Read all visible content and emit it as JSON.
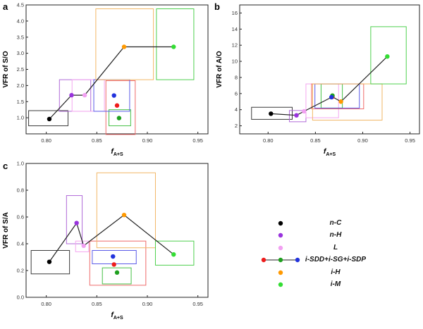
{
  "chart_data": [
    {
      "type": "scatter",
      "panel_label": "a",
      "xlabel": "f",
      "xlabel_sub": "A+S",
      "ylabel": "VFR of S/O",
      "xlim": [
        0.78,
        0.96
      ],
      "ylim": [
        0.5,
        4.5
      ],
      "xticks": [
        "0.80",
        "0.85",
        "0.90",
        "0.95"
      ],
      "xtick_values": [
        0.8,
        0.85,
        0.9,
        0.95
      ],
      "yticks": [
        "1.0",
        "1.5",
        "2.0",
        "2.5",
        "3.0",
        "3.5",
        "4.0",
        "4.5"
      ],
      "ytick_values": [
        1.0,
        1.5,
        2.0,
        2.5,
        3.0,
        3.5,
        4.0,
        4.5
      ],
      "boxes": [
        {
          "group": "n-C",
          "color": "#3a3a3a",
          "x": [
            0.7825,
            0.8215
          ],
          "y": [
            0.75,
            1.22
          ]
        },
        {
          "group": "n-H",
          "color": "#b06ad8",
          "x": [
            0.813,
            0.844
          ],
          "y": [
            1.2,
            2.18
          ]
        },
        {
          "group": "L",
          "color": "#f4a6f0",
          "x": [
            0.8255,
            0.8575
          ],
          "y": [
            1.2,
            2.18
          ]
        },
        {
          "group": "i-SDD",
          "color": "#ef6a6a",
          "x": [
            0.859,
            0.888
          ],
          "y": [
            0.48,
            2.15
          ]
        },
        {
          "group": "i-SG",
          "color": "#46c046",
          "x": [
            0.862,
            0.8835
          ],
          "y": [
            0.75,
            1.25
          ]
        },
        {
          "group": "i-SDP",
          "color": "#5a5ae8",
          "x": [
            0.847,
            0.8825
          ],
          "y": [
            1.2,
            2.18
          ]
        },
        {
          "group": "i-H",
          "color": "#f2b766",
          "x": [
            0.849,
            0.906
          ],
          "y": [
            2.18,
            4.38
          ]
        },
        {
          "group": "i-M",
          "color": "#4ed04e",
          "x": [
            0.909,
            0.946
          ],
          "y": [
            2.18,
            4.38
          ]
        }
      ],
      "points": [
        {
          "group": "n-C",
          "color": "#000000",
          "x": 0.803,
          "y": 0.96
        },
        {
          "group": "n-H",
          "color": "#9933dd",
          "x": 0.825,
          "y": 1.7
        },
        {
          "group": "L",
          "color": "#f2a0f2",
          "x": 0.838,
          "y": 1.7
        },
        {
          "group": "i-SDD",
          "color": "#ee1c1c",
          "x": 0.87,
          "y": 1.38
        },
        {
          "group": "i-SG",
          "color": "#1fa01f",
          "x": 0.872,
          "y": 0.99
        },
        {
          "group": "i-SDP",
          "color": "#2233dd",
          "x": 0.867,
          "y": 1.69
        },
        {
          "group": "i-H",
          "color": "#ff9900",
          "x": 0.877,
          "y": 3.2
        },
        {
          "group": "i-M",
          "color": "#33dd33",
          "x": 0.926,
          "y": 3.2
        }
      ],
      "line": [
        [
          0.803,
          0.96
        ],
        [
          0.825,
          1.7
        ],
        [
          0.838,
          1.7
        ],
        [
          0.877,
          3.2
        ],
        [
          0.926,
          3.2
        ]
      ]
    },
    {
      "type": "scatter",
      "panel_label": "b",
      "xlabel": "f",
      "xlabel_sub": "A+S",
      "ylabel": "VFR of A/O",
      "xlim": [
        0.77,
        0.96
      ],
      "ylim": [
        1,
        17
      ],
      "xticks": [
        "0.80",
        "0.85",
        "0.90",
        "0.95"
      ],
      "xtick_values": [
        0.8,
        0.85,
        0.9,
        0.95
      ],
      "yticks": [
        "2",
        "4",
        "6",
        "8",
        "10",
        "12",
        "14",
        "16"
      ],
      "ytick_values": [
        2,
        4,
        6,
        8,
        10,
        12,
        14,
        16
      ],
      "boxes": [
        {
          "group": "n-C",
          "color": "#3a3a3a",
          "x": [
            0.7825,
            0.8255
          ],
          "y": [
            2.8,
            4.3
          ]
        },
        {
          "group": "n-H",
          "color": "#b06ad8",
          "x": [
            0.8225,
            0.84
          ],
          "y": [
            2.5,
            3.9
          ]
        },
        {
          "group": "L",
          "color": "#f4a6f0",
          "x": [
            0.84,
            0.8745
          ],
          "y": [
            3.0,
            7.2
          ]
        },
        {
          "group": "i-SDD",
          "color": "#ef6a6a",
          "x": [
            0.846,
            0.901
          ],
          "y": [
            4.1,
            7.2
          ]
        },
        {
          "group": "i-SG",
          "color": "#46c046",
          "x": [
            0.856,
            0.8785
          ],
          "y": [
            4.2,
            7.2
          ]
        },
        {
          "group": "i-SDP",
          "color": "#5a5ae8",
          "x": [
            0.8495,
            0.8965
          ],
          "y": [
            4.2,
            7.2
          ]
        },
        {
          "group": "i-H",
          "color": "#f2b766",
          "x": [
            0.847,
            0.9205
          ],
          "y": [
            2.7,
            7.2
          ]
        },
        {
          "group": "i-M",
          "color": "#4ed04e",
          "x": [
            0.9085,
            0.946
          ],
          "y": [
            7.2,
            14.3
          ]
        }
      ],
      "points": [
        {
          "group": "n-C",
          "color": "#000000",
          "x": 0.803,
          "y": 3.5
        },
        {
          "group": "n-H",
          "color": "#9933dd",
          "x": 0.83,
          "y": 3.3
        },
        {
          "group": "L",
          "color": "#f2a0f2",
          "x": 0.838,
          "y": 3.8
        },
        {
          "group": "i-SDD",
          "color": "#ee1c1c",
          "x": 0.868,
          "y": 5.6
        },
        {
          "group": "i-SG",
          "color": "#1fa01f",
          "x": 0.868,
          "y": 5.75
        },
        {
          "group": "i-SDP",
          "color": "#2233dd",
          "x": 0.867,
          "y": 5.55
        },
        {
          "group": "i-H",
          "color": "#ff9900",
          "x": 0.877,
          "y": 5.0
        },
        {
          "group": "i-M",
          "color": "#33dd33",
          "x": 0.926,
          "y": 10.6
        }
      ],
      "line": [
        [
          0.803,
          3.5
        ],
        [
          0.83,
          3.3
        ],
        [
          0.838,
          3.8
        ],
        [
          0.868,
          5.6
        ],
        [
          0.877,
          5.0
        ],
        [
          0.926,
          10.6
        ]
      ]
    },
    {
      "type": "scatter",
      "panel_label": "c",
      "xlabel": "f",
      "xlabel_sub": "A+S",
      "ylabel": "VFR of S/A",
      "xlim": [
        0.78,
        0.96
      ],
      "ylim": [
        0.0,
        1.0
      ],
      "xticks": [
        "0.80",
        "0.85",
        "0.90",
        "0.95"
      ],
      "xtick_values": [
        0.8,
        0.85,
        0.9,
        0.95
      ],
      "yticks": [
        "0.0",
        "0.2",
        "0.4",
        "0.6",
        "0.8",
        "1.0"
      ],
      "ytick_values": [
        0.0,
        0.2,
        0.4,
        0.6,
        0.8,
        1.0
      ],
      "boxes": [
        {
          "group": "n-C",
          "color": "#3a3a3a",
          "x": [
            0.785,
            0.823
          ],
          "y": [
            0.175,
            0.35
          ]
        },
        {
          "group": "n-H",
          "color": "#b06ad8",
          "x": [
            0.82,
            0.8355
          ],
          "y": [
            0.4,
            0.76
          ]
        },
        {
          "group": "L",
          "color": "#f4a6f0",
          "x": [
            0.829,
            0.842
          ],
          "y": [
            0.34,
            0.42
          ]
        },
        {
          "group": "i-SDD",
          "color": "#ef6a6a",
          "x": [
            0.843,
            0.8985
          ],
          "y": [
            0.09,
            0.42
          ]
        },
        {
          "group": "i-SG",
          "color": "#46c046",
          "x": [
            0.8555,
            0.884
          ],
          "y": [
            0.1,
            0.22
          ]
        },
        {
          "group": "i-SDP",
          "color": "#5a5ae8",
          "x": [
            0.8455,
            0.889
          ],
          "y": [
            0.25,
            0.35
          ]
        },
        {
          "group": "i-H",
          "color": "#f2b766",
          "x": [
            0.85,
            0.908
          ],
          "y": [
            0.37,
            0.93
          ]
        },
        {
          "group": "i-M",
          "color": "#4ed04e",
          "x": [
            0.908,
            0.946
          ],
          "y": [
            0.24,
            0.42
          ]
        }
      ],
      "points": [
        {
          "group": "n-C",
          "color": "#000000",
          "x": 0.803,
          "y": 0.265
        },
        {
          "group": "n-H",
          "color": "#9933dd",
          "x": 0.83,
          "y": 0.555
        },
        {
          "group": "L",
          "color": "#f2a0f2",
          "x": 0.837,
          "y": 0.385
        },
        {
          "group": "i-SDD",
          "color": "#ee1c1c",
          "x": 0.867,
          "y": 0.245
        },
        {
          "group": "i-SG",
          "color": "#1fa01f",
          "x": 0.87,
          "y": 0.185
        },
        {
          "group": "i-SDP",
          "color": "#2233dd",
          "x": 0.866,
          "y": 0.305
        },
        {
          "group": "i-H",
          "color": "#ff9900",
          "x": 0.877,
          "y": 0.615
        },
        {
          "group": "i-M",
          "color": "#33dd33",
          "x": 0.926,
          "y": 0.32
        }
      ],
      "line": [
        [
          0.803,
          0.265
        ],
        [
          0.83,
          0.555
        ],
        [
          0.837,
          0.385
        ],
        [
          0.877,
          0.615
        ],
        [
          0.926,
          0.32
        ]
      ]
    }
  ],
  "legend": {
    "items": [
      {
        "label": "n-C",
        "dots": [
          "#000000"
        ]
      },
      {
        "label": "n-H",
        "dots": [
          "#9933dd"
        ]
      },
      {
        "label": "L",
        "dots": [
          "#f2a0f2"
        ]
      },
      {
        "label": "i-SDD+i-SG+i-SDP",
        "dots": [
          "#ee1c1c",
          "#1fa01f",
          "#2233dd"
        ]
      },
      {
        "label": "i-H",
        "dots": [
          "#ff9900"
        ]
      },
      {
        "label": "i-M",
        "dots": [
          "#33dd33"
        ]
      }
    ]
  }
}
